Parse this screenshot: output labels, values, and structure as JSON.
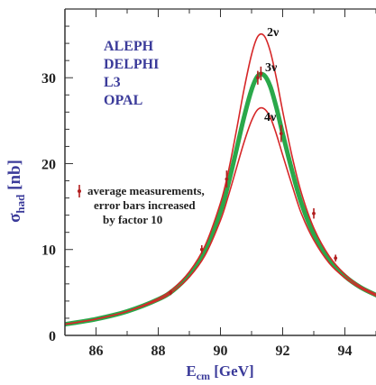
{
  "chart_data": {
    "type": "line",
    "xlabel": {
      "main": "E",
      "sub": "cm",
      "unit": "[GeV]"
    },
    "ylabel": {
      "main": "σ",
      "sub": "had",
      "unit": "[nb]"
    },
    "xlim": [
      85,
      95
    ],
    "ylim": [
      0,
      38
    ],
    "x_ticks": [
      86,
      88,
      90,
      92,
      94
    ],
    "y_ticks": [
      0,
      10,
      20,
      30
    ],
    "experiments": [
      "ALEPH",
      "DELPHI",
      "L3",
      "OPAL"
    ],
    "legend": {
      "text": [
        "average measurements,",
        "error bars increased",
        "by factor 10"
      ],
      "placement": "center-left"
    },
    "series": [
      {
        "name": "2ν",
        "color": "#d62728",
        "x": [
          85,
          86,
          87,
          88,
          88.5,
          89,
          89.5,
          90,
          90.25,
          90.5,
          90.75,
          91,
          91.2,
          91.4,
          91.6,
          91.8,
          92,
          92.3,
          92.6,
          93,
          93.5,
          94,
          94.5,
          95
        ],
        "values": [
          1.3,
          1.9,
          2.8,
          4.3,
          5.5,
          7.4,
          10.4,
          15.4,
          19.0,
          23.6,
          28.5,
          32.7,
          34.8,
          34.9,
          33.1,
          29.9,
          26.1,
          20.9,
          16.6,
          12.5,
          9.2,
          7.1,
          5.7,
          4.8
        ]
      },
      {
        "name": "3ν",
        "color": "#2aa84a",
        "x": [
          85,
          86,
          87,
          88,
          88.5,
          89,
          89.5,
          90,
          90.25,
          90.5,
          90.75,
          91,
          91.2,
          91.4,
          91.6,
          91.8,
          92,
          92.3,
          92.6,
          93,
          93.5,
          94,
          94.5,
          95
        ],
        "values": [
          1.3,
          1.9,
          2.8,
          4.2,
          5.3,
          7.1,
          9.8,
          14.4,
          17.6,
          21.4,
          25.3,
          28.6,
          30.2,
          30.3,
          29.0,
          26.5,
          23.5,
          19.2,
          15.4,
          11.8,
          8.8,
          6.9,
          5.6,
          4.7
        ]
      },
      {
        "name": "4ν",
        "color": "#d62728",
        "x": [
          85,
          86,
          87,
          88,
          88.5,
          89,
          89.5,
          90,
          90.25,
          90.5,
          90.75,
          91,
          91.2,
          91.4,
          91.6,
          91.8,
          92,
          92.3,
          92.6,
          93,
          93.5,
          94,
          94.5,
          95
        ],
        "values": [
          1.3,
          1.9,
          2.8,
          4.1,
          5.2,
          6.8,
          9.3,
          13.4,
          16.2,
          19.3,
          22.4,
          25.0,
          26.3,
          26.4,
          25.4,
          23.4,
          21.0,
          17.5,
          14.2,
          11.1,
          8.4,
          6.7,
          5.5,
          4.6
        ]
      }
    ],
    "measurements": {
      "color": "#b21f1f",
      "x": [
        88.4,
        89.4,
        90.2,
        91.2,
        91.3,
        91.95,
        93.0,
        93.7
      ],
      "values": [
        5.0,
        10.0,
        18.2,
        30.0,
        30.5,
        23.5,
        14.2,
        9.0
      ],
      "errors": [
        0.3,
        0.5,
        1.0,
        0.8,
        0.8,
        1.0,
        0.6,
        0.4
      ]
    }
  }
}
